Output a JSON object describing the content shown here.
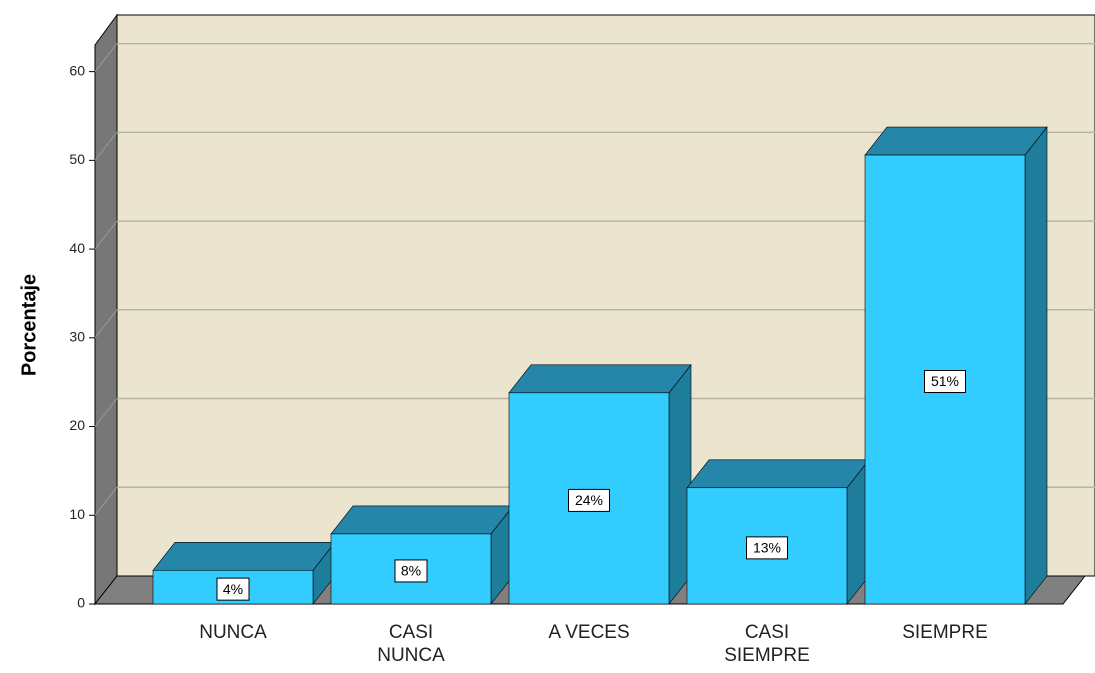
{
  "chart_data": {
    "type": "bar3d",
    "y_axis_label": "Porcentaje",
    "categories": [
      "NUNCA",
      "CASI NUNCA",
      "A VECES",
      "CASI SIEMPRE",
      "SIEMPRE"
    ],
    "values": [
      3.8,
      7.9,
      23.8,
      13.1,
      50.6
    ],
    "value_labels": [
      "4%",
      "8%",
      "24%",
      "13%",
      "51%"
    ],
    "color": "#33ccff",
    "ylim": [
      0,
      63
    ],
    "yticks": [
      0,
      10,
      20,
      30,
      40,
      50,
      60
    ],
    "grid": true
  }
}
